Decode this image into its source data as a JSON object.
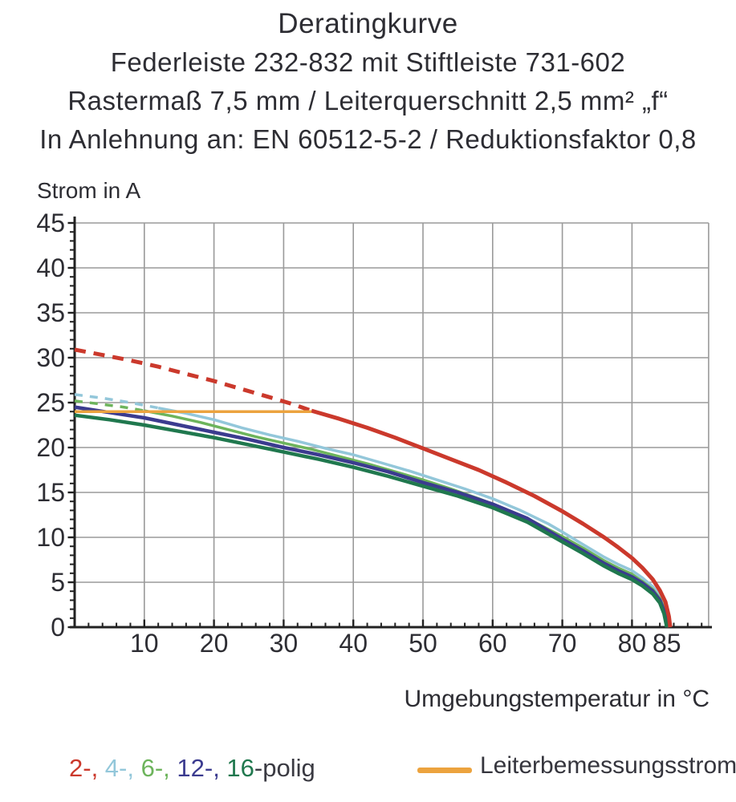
{
  "header": {
    "lines": [
      "Deratingkurve",
      "Federleiste 232-832 mit Stiftleiste 731-602",
      "Rastermaß 7,5 mm / Leiterquerschnitt 2,5 mm² „f“",
      "In Anlehnung an: EN 60512-5-2 / Reduktionsfaktor 0,8"
    ]
  },
  "colors": {
    "grid": "#9a9a9a",
    "axis": "#222222",
    "text": "#2d2d33"
  },
  "legend": {
    "polig_parts": [
      {
        "text": "2-, ",
        "color": "#cb392c"
      },
      {
        "text": "4-, ",
        "color": "#93c7da"
      },
      {
        "text": "6-, ",
        "color": "#6db45c"
      },
      {
        "text": "12-, ",
        "color": "#3b3b8f"
      },
      {
        "text": "16",
        "color": "#20784e"
      },
      {
        "text": "-polig",
        "color": "#3a3a42"
      }
    ],
    "line_label": "Leiterbemessungsstrom",
    "line_color": "#eca33e"
  },
  "chart_data": {
    "type": "line",
    "title": "Deratingkurve",
    "subtitle": "Federleiste 232-832 mit Stiftleiste 731-602 / Rastermaß 7,5 mm / Leiterquerschnitt 2,5 mm² „f“ / In Anlehnung an: EN 60512-5-2 / Reduktionsfaktor 0,8",
    "xlabel": "Umgebungstemperatur in °C",
    "ylabel": "Strom in A",
    "xlim": [
      0,
      91
    ],
    "ylim": [
      0,
      45
    ],
    "grid": true,
    "legend_position": "bottom",
    "x_gridlines": [
      10,
      20,
      30,
      40,
      50,
      60,
      70,
      80
    ],
    "y_gridlines": [
      5,
      10,
      15,
      20,
      25,
      30,
      35,
      40,
      45
    ],
    "x_tick_labels": [
      10,
      20,
      30,
      40,
      50,
      60,
      70,
      80,
      85
    ],
    "y_tick_labels": [
      0,
      5,
      10,
      15,
      20,
      25,
      30,
      35,
      40,
      45
    ],
    "x_minor_step": 2,
    "y_minor_step": 1,
    "series": [
      {
        "name": "4-polig",
        "color": "#93c7da",
        "width": 3.5,
        "dash_until": 12,
        "dash": "10 9",
        "points": [
          [
            0,
            25.9
          ],
          [
            4,
            25.5
          ],
          [
            8,
            25.0
          ],
          [
            12,
            24.4
          ],
          [
            16,
            23.8
          ],
          [
            20,
            23.1
          ],
          [
            24,
            22.2
          ],
          [
            28,
            21.4
          ],
          [
            32,
            20.7
          ],
          [
            36,
            19.9
          ],
          [
            40,
            19.2
          ],
          [
            44,
            18.3
          ],
          [
            48,
            17.4
          ],
          [
            52,
            16.4
          ],
          [
            56,
            15.4
          ],
          [
            60,
            14.3
          ],
          [
            64,
            13.0
          ],
          [
            68,
            11.5
          ],
          [
            70,
            10.6
          ],
          [
            73,
            9.2
          ],
          [
            76,
            7.8
          ],
          [
            78,
            7.0
          ],
          [
            80,
            6.3
          ],
          [
            81.5,
            5.5
          ],
          [
            83,
            4.5
          ],
          [
            84,
            3.5
          ],
          [
            84.8,
            2.2
          ],
          [
            85.3,
            0
          ]
        ]
      },
      {
        "name": "6-polig",
        "color": "#6db45c",
        "width": 3.5,
        "dash_until": 10,
        "dash": "10 9",
        "points": [
          [
            0,
            25.2
          ],
          [
            4,
            24.8
          ],
          [
            7,
            24.5
          ],
          [
            10,
            24.1
          ],
          [
            14,
            23.5
          ],
          [
            18,
            22.8
          ],
          [
            22,
            22.0
          ],
          [
            26,
            21.2
          ],
          [
            30,
            20.5
          ],
          [
            34,
            19.8
          ],
          [
            38,
            19.0
          ],
          [
            42,
            18.2
          ],
          [
            46,
            17.3
          ],
          [
            50,
            16.4
          ],
          [
            54,
            15.4
          ],
          [
            58,
            14.3
          ],
          [
            62,
            13.1
          ],
          [
            66,
            11.7
          ],
          [
            70,
            10.1
          ],
          [
            73,
            8.8
          ],
          [
            76,
            7.4
          ],
          [
            78,
            6.6
          ],
          [
            80,
            5.9
          ],
          [
            81.5,
            5.1
          ],
          [
            83,
            4.2
          ],
          [
            84,
            3.2
          ],
          [
            84.7,
            2.0
          ],
          [
            85.2,
            0
          ]
        ]
      },
      {
        "name": "12-polig",
        "color": "#3b3b8f",
        "width": 4.5,
        "dash_until": 0,
        "dash": "",
        "points": [
          [
            0,
            24.5
          ],
          [
            5,
            23.9
          ],
          [
            10,
            23.3
          ],
          [
            15,
            22.5
          ],
          [
            20,
            21.7
          ],
          [
            25,
            20.9
          ],
          [
            30,
            20.0
          ],
          [
            35,
            19.2
          ],
          [
            40,
            18.3
          ],
          [
            45,
            17.3
          ],
          [
            50,
            16.1
          ],
          [
            55,
            15.0
          ],
          [
            60,
            13.7
          ],
          [
            65,
            12.1
          ],
          [
            70,
            9.8
          ],
          [
            73,
            8.5
          ],
          [
            76,
            7.1
          ],
          [
            78,
            6.3
          ],
          [
            80,
            5.6
          ],
          [
            81.5,
            4.9
          ],
          [
            83,
            4.0
          ],
          [
            84,
            3.0
          ],
          [
            84.6,
            1.8
          ],
          [
            85.1,
            0
          ]
        ]
      },
      {
        "name": "16-polig",
        "color": "#20784e",
        "width": 4.5,
        "dash_until": 0,
        "dash": "",
        "points": [
          [
            0,
            23.6
          ],
          [
            5,
            23.1
          ],
          [
            10,
            22.5
          ],
          [
            15,
            21.8
          ],
          [
            20,
            21.1
          ],
          [
            25,
            20.3
          ],
          [
            30,
            19.5
          ],
          [
            35,
            18.7
          ],
          [
            40,
            17.8
          ],
          [
            45,
            16.8
          ],
          [
            50,
            15.7
          ],
          [
            55,
            14.6
          ],
          [
            60,
            13.3
          ],
          [
            65,
            11.7
          ],
          [
            70,
            9.5
          ],
          [
            73,
            8.2
          ],
          [
            76,
            6.8
          ],
          [
            78,
            6.0
          ],
          [
            80,
            5.3
          ],
          [
            81.5,
            4.6
          ],
          [
            83,
            3.7
          ],
          [
            84,
            2.7
          ],
          [
            84.6,
            1.5
          ],
          [
            85.0,
            0
          ]
        ]
      },
      {
        "name": "2-polig",
        "color": "#cb392c",
        "width": 5,
        "dash_until": 34,
        "dash": "14 10",
        "points": [
          [
            0,
            30.9
          ],
          [
            4,
            30.3
          ],
          [
            8,
            29.7
          ],
          [
            12,
            29.0
          ],
          [
            16,
            28.2
          ],
          [
            20,
            27.4
          ],
          [
            24,
            26.5
          ],
          [
            28,
            25.6
          ],
          [
            31,
            24.9
          ],
          [
            34,
            24.1
          ],
          [
            38,
            23.2
          ],
          [
            42,
            22.2
          ],
          [
            46,
            21.1
          ],
          [
            50,
            19.9
          ],
          [
            54,
            18.7
          ],
          [
            58,
            17.5
          ],
          [
            62,
            16.1
          ],
          [
            66,
            14.6
          ],
          [
            70,
            12.9
          ],
          [
            73,
            11.5
          ],
          [
            76,
            10.0
          ],
          [
            78,
            8.9
          ],
          [
            80,
            7.7
          ],
          [
            81.5,
            6.6
          ],
          [
            83,
            5.3
          ],
          [
            84,
            4.1
          ],
          [
            84.8,
            2.8
          ],
          [
            85.3,
            1.2
          ],
          [
            85.5,
            0
          ]
        ]
      },
      {
        "name": "Leiterbemessungsstrom",
        "color": "#eca33e",
        "width": 3.5,
        "dash_until": 0,
        "dash": "",
        "points": [
          [
            0,
            24
          ],
          [
            34,
            24
          ]
        ]
      }
    ]
  }
}
